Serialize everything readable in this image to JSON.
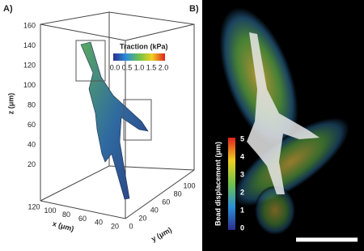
{
  "panel_a": {
    "label": "A)",
    "colorbar": {
      "title": "Traction (kPa)",
      "ticks": [
        "0.0",
        "0.5",
        "1.0",
        "1.5",
        "2.0"
      ]
    },
    "z_axis": {
      "label": "z (μm)",
      "ticks": [
        "160",
        "140",
        "120",
        "100",
        "80",
        "60",
        "40",
        "20"
      ]
    },
    "x_axis": {
      "label": "x (μm)",
      "ticks": [
        "120",
        "100",
        "80",
        "60",
        "40",
        "20"
      ]
    },
    "y_axis": {
      "label": "y (μm)",
      "ticks": [
        "0",
        "20",
        "40",
        "60",
        "80",
        "100"
      ]
    }
  },
  "panel_b": {
    "label": "B)",
    "colorbar": {
      "title": "Bead displacement (μm)",
      "ticks": [
        "0",
        "1",
        "2",
        "3",
        "4",
        "5"
      ]
    }
  }
}
